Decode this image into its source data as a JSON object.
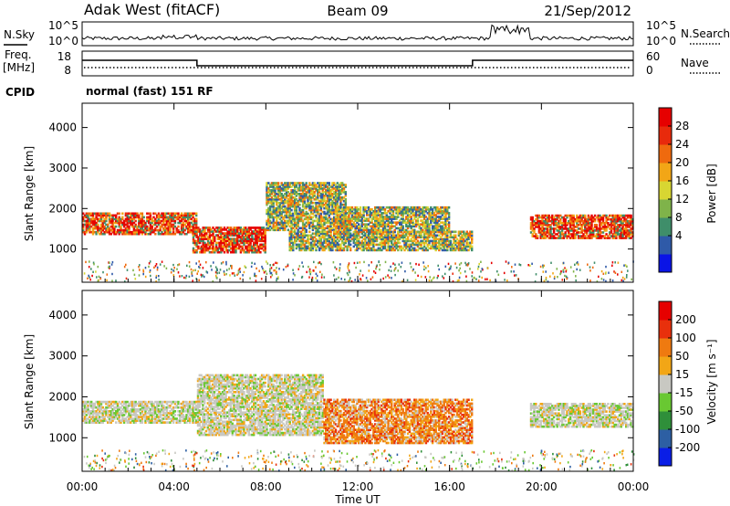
{
  "chart_data": {
    "type": "heatmap",
    "header": {
      "station": "Adak West (fitACF)",
      "beam": "Beam 09",
      "date": "21/Sep/2012"
    },
    "noise_panel": {
      "left_label": "N.Sky",
      "right_label": "N.Search",
      "left_ticks": [
        "10^5",
        "10^0"
      ],
      "right_ticks": [
        "10^5",
        "10^0"
      ]
    },
    "freq_panel": {
      "left_label": "Freq.",
      "left_unit": "[MHz]",
      "right_label": "Nave",
      "left_ticks": [
        "18",
        "8"
      ],
      "right_ticks": [
        "60",
        "0"
      ],
      "freq_steps": [
        {
          "t_start": 0,
          "t_end": 5,
          "level": "high"
        },
        {
          "t_start": 5,
          "t_end": 17,
          "level": "low"
        },
        {
          "t_start": 17,
          "t_end": 24,
          "level": "high"
        }
      ]
    },
    "cpid": {
      "label": "CPID",
      "text": "normal (fast) 151 RF"
    },
    "x_axis": {
      "label": "Time UT",
      "unit": "hours",
      "range": [
        0,
        24
      ],
      "tick_labels": [
        "00:00",
        "04:00",
        "08:00",
        "12:00",
        "16:00",
        "20:00",
        "00:00"
      ],
      "tick_values": [
        0,
        4,
        8,
        12,
        16,
        20,
        24
      ]
    },
    "panels": [
      {
        "name": "power",
        "ylabel": "Slant Range [km]",
        "ylim": [
          180,
          4600
        ],
        "yticks": [
          1000,
          2000,
          3000,
          4000
        ],
        "colorbar_label": "Power [dB]",
        "colorbar_ticks": [
          "28",
          "24",
          "20",
          "16",
          "12",
          "8",
          "4"
        ],
        "colorbar_colors": [
          "#0a14e6",
          "#2f5aa8",
          "#3f8e6a",
          "#7fb34a",
          "#d8d632",
          "#f2a616",
          "#ef6a0e",
          "#e82a0c",
          "#e60000"
        ],
        "echo_regions": [
          {
            "t": [
              0.0,
              5.0
            ],
            "range": [
              1400,
              1950
            ],
            "level": "high"
          },
          {
            "t": [
              4.8,
              8.0
            ],
            "range": [
              950,
              1600
            ],
            "level": "high"
          },
          {
            "t": [
              8.0,
              11.5
            ],
            "range": [
              1500,
              2700
            ],
            "level": "mid"
          },
          {
            "t": [
              9.0,
              17.0
            ],
            "range": [
              1000,
              1500
            ],
            "level": "mid"
          },
          {
            "t": [
              11.0,
              16.0
            ],
            "range": [
              1450,
              2100
            ],
            "level": "mid"
          },
          {
            "t": [
              19.5,
              24.0
            ],
            "range": [
              1300,
              1900
            ],
            "level": "high"
          }
        ]
      },
      {
        "name": "velocity",
        "ylabel": "Slant Range [km]",
        "ylim": [
          180,
          4600
        ],
        "yticks": [
          1000,
          2000,
          3000,
          4000
        ],
        "colorbar_label": "Velocity [m s⁻¹]",
        "colorbar_ticks": [
          "200",
          "100",
          "50",
          "15",
          "-15",
          "-50",
          "-100",
          "-200"
        ],
        "colorbar_colors": [
          "#0a1ee6",
          "#2d5fa3",
          "#2f8f3a",
          "#69c832",
          "#c8c8c2",
          "#f2a616",
          "#ef7a10",
          "#e8300c",
          "#e60000"
        ],
        "echo_regions": [
          {
            "t": [
              0.0,
              5.0
            ],
            "range": [
              1400,
              1950
            ],
            "level": "ground"
          },
          {
            "t": [
              5.0,
              10.5
            ],
            "range": [
              1100,
              2600
            ],
            "level": "ground"
          },
          {
            "t": [
              10.5,
              17.0
            ],
            "range": [
              900,
              2000
            ],
            "level": "neg"
          },
          {
            "t": [
              19.5,
              24.0
            ],
            "range": [
              1300,
              1900
            ],
            "level": "ground"
          }
        ]
      }
    ]
  }
}
